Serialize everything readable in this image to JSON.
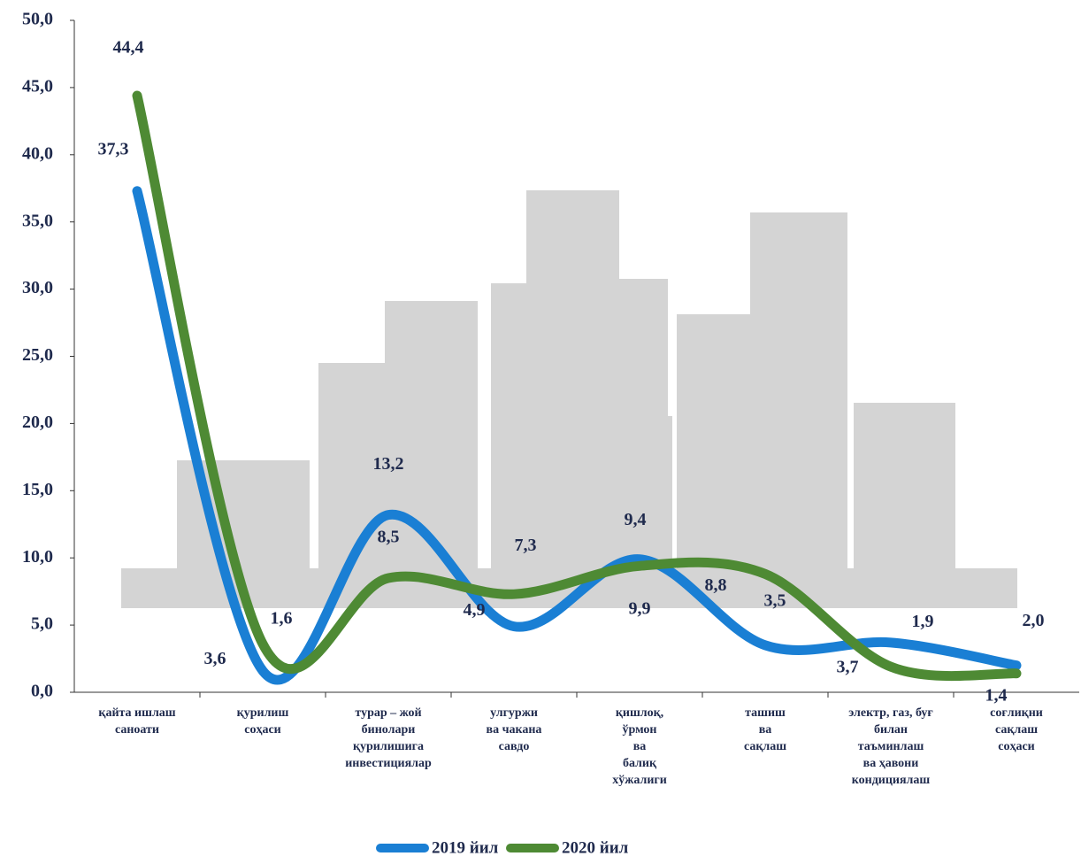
{
  "chart_data": {
    "type": "line",
    "categories": [
      "қайта ишлаш\nсаноати",
      "қурилиш\nсоҳаси",
      "турар – жой\nбинолари\nқурилишига\nинвестициялар",
      "улгуржи\nва чакана\nсавдо",
      "қишлоқ,\nўрмон\nва\nбалиқ\nхўжалиги",
      "ташиш\nва\nсақлаш",
      "электр, газ, буғ\nбилан\nтаъминлаш\nва ҳавони\nкондициялаш",
      "соғлиқни\nсақлаш\nсоҳаси"
    ],
    "series": [
      {
        "name": "2019 йил",
        "color": "#1a7fd4",
        "values": [
          37.3,
          1.6,
          13.2,
          4.9,
          9.9,
          3.5,
          3.7,
          2.0
        ],
        "value_labels": [
          "37,3",
          "1,6",
          "13,2",
          "4,9",
          "9,9",
          "3,5",
          "3,7",
          "2,0"
        ]
      },
      {
        "name": "2020 йил",
        "color": "#4e8a34",
        "values": [
          44.4,
          3.6,
          8.5,
          7.3,
          9.4,
          8.8,
          1.9,
          1.4
        ],
        "value_labels": [
          "44,4",
          "3,6",
          "8,5",
          "7,3",
          "9,4",
          "8,8",
          "1,9",
          "1,4"
        ]
      }
    ],
    "ylim": [
      0,
      50
    ],
    "yticks": [
      {
        "value": 0,
        "label": "0,0"
      },
      {
        "value": 5,
        "label": "5,0"
      },
      {
        "value": 10,
        "label": "10,0"
      },
      {
        "value": 15,
        "label": "15,0"
      },
      {
        "value": 20,
        "label": "20,0"
      },
      {
        "value": 25,
        "label": "25,0"
      },
      {
        "value": 30,
        "label": "30,0"
      },
      {
        "value": 35,
        "label": "35,0"
      },
      {
        "value": 40,
        "label": "40,0"
      },
      {
        "value": 45,
        "label": "45,0"
      },
      {
        "value": 50,
        "label": "50,0"
      }
    ],
    "grid": false
  }
}
